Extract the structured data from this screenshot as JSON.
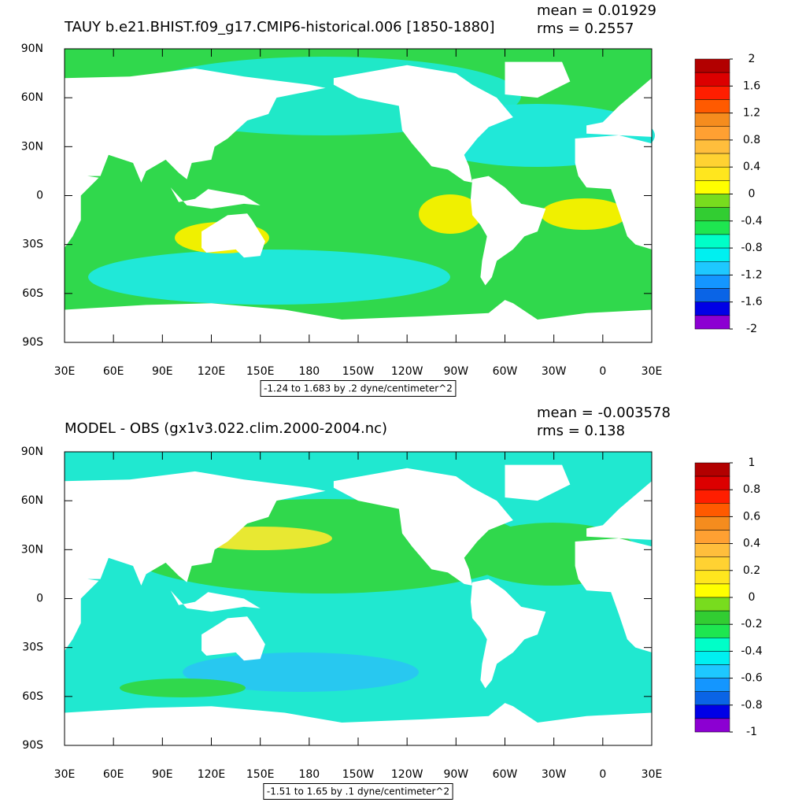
{
  "panels": [
    {
      "title": "TAUY b.e21.BHIST.f09_g17.CMIP6-historical.006 [1850-1880]",
      "mean": "mean = 0.01929",
      "rms": "rms = 0.2557",
      "caption": "-1.24 to 1.683 by .2 dyne/centimeter^2",
      "colorbar": {
        "range": [
          -2,
          2
        ],
        "ticks": [
          2,
          1.6,
          1.2,
          0.8,
          0.4,
          0,
          -0.4,
          -0.8,
          -1.2,
          -1.6,
          -2
        ],
        "colors": [
          "#b20000",
          "#dc0000",
          "#ff1e00",
          "#ff5a00",
          "#f58c1e",
          "#ffa032",
          "#ffbe3c",
          "#ffd232",
          "#ffe61e",
          "#ffff00",
          "#78dc1e",
          "#32cd32",
          "#1ee650",
          "#00ffc8",
          "#00f0f0",
          "#1ec8ff",
          "#1496ff",
          "#0a64e6",
          "#0000e6",
          "#8c00d2"
        ]
      }
    },
    {
      "title": "MODEL - OBS (gx1v3.022.clim.2000-2004.nc)",
      "mean": "mean = -0.003578",
      "rms": "rms = 0.138",
      "caption": "-1.51 to 1.65 by .1 dyne/centimeter^2",
      "colorbar": {
        "range": [
          -1,
          1
        ],
        "ticks": [
          1,
          0.8,
          0.6,
          0.4,
          0.2,
          0,
          -0.2,
          -0.4,
          -0.6,
          -0.8,
          -1
        ],
        "colors": [
          "#b20000",
          "#dc0000",
          "#ff1e00",
          "#ff5a00",
          "#f58c1e",
          "#ffa032",
          "#ffbe3c",
          "#ffd232",
          "#ffe61e",
          "#ffff00",
          "#78dc1e",
          "#32cd32",
          "#1ee650",
          "#00ffc8",
          "#00f0f0",
          "#1ec8ff",
          "#1496ff",
          "#0a64e6",
          "#0000e6",
          "#8c00d2"
        ]
      }
    }
  ],
  "lat_ticks": [
    "90N",
    "60N",
    "30N",
    "0",
    "30S",
    "60S",
    "90S"
  ],
  "lon_ticks": [
    "30E",
    "60E",
    "90E",
    "120E",
    "150E",
    "180",
    "150W",
    "120W",
    "90W",
    "60W",
    "30W",
    "0",
    "30E"
  ]
}
